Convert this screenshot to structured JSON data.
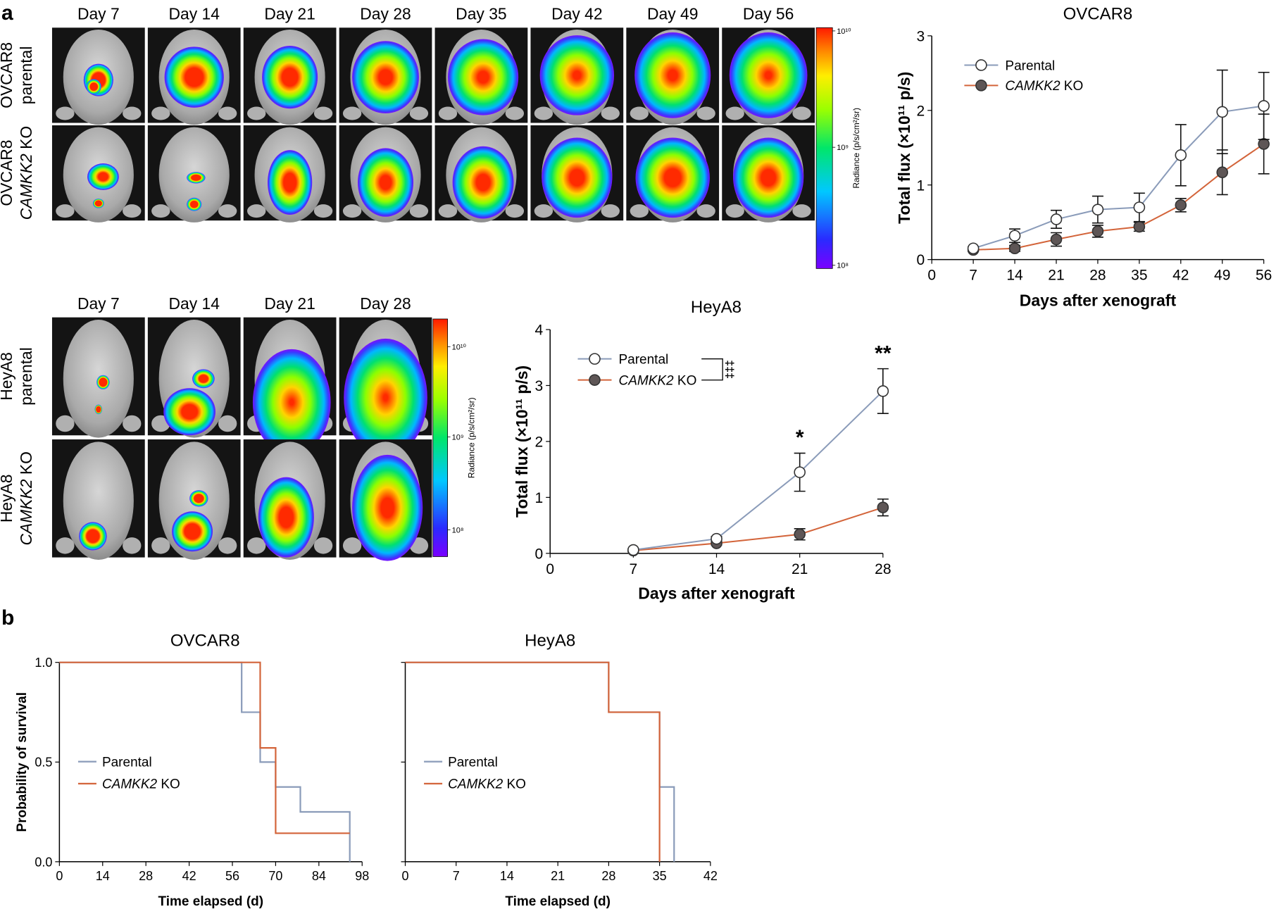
{
  "panel_labels": {
    "a": "a",
    "b": "b"
  },
  "imaging": {
    "ovcar8": {
      "day_headers": [
        "Day 7",
        "Day 14",
        "Day 21",
        "Day 28",
        "Day 35",
        "Day 42",
        "Day 49",
        "Day 56"
      ],
      "rows": [
        {
          "line1": "OVCAR8",
          "line2": "parental",
          "line2_italic_part": "",
          "line2_rest": ""
        },
        {
          "line1": "OVCAR8",
          "line2": "",
          "line2_italic_part": "CAMKK2",
          "line2_rest": " KO"
        }
      ],
      "colorbar": {
        "label": "Radiance (p/s/cm²/sr)",
        "ticks": [
          "10¹⁰",
          "10⁹",
          "10⁸"
        ]
      }
    },
    "heya8": {
      "day_headers": [
        "Day 7",
        "Day 14",
        "Day 21",
        "Day 28"
      ],
      "rows": [
        {
          "line1": "HeyA8",
          "line2": "parental",
          "line2_italic_part": "",
          "line2_rest": ""
        },
        {
          "line1": "HeyA8",
          "line2": "",
          "line2_italic_part": "CAMKK2",
          "line2_rest": " KO"
        }
      ],
      "colorbar": {
        "label": "Radiance (p/s/cm²/sr)",
        "ticks": [
          "10¹⁰",
          "10⁹",
          "10⁸"
        ]
      }
    }
  },
  "colors": {
    "parental": "#8a9bb9",
    "ko": "#d3643a",
    "ko_marker": "#5e5656",
    "axis": "#000000"
  },
  "chart_data": [
    {
      "id": "ovcar8_flux",
      "type": "line",
      "title": "OVCAR8",
      "xlabel": "Days after xenograft",
      "ylabel": "Total flux (×10¹¹ p/s)",
      "xlim": [
        0,
        56
      ],
      "ylim": [
        0,
        3
      ],
      "xticks": [
        0,
        7,
        14,
        21,
        28,
        35,
        42,
        49,
        56
      ],
      "yticks": [
        0,
        1,
        2,
        3
      ],
      "x": [
        7,
        14,
        21,
        28,
        35,
        42,
        49,
        56
      ],
      "series": [
        {
          "name": "Parental",
          "name_italic": "",
          "name_rest": "",
          "values": [
            0.15,
            0.32,
            0.54,
            0.67,
            0.7,
            1.4,
            1.98,
            2.06
          ],
          "errors": [
            0.02,
            0.09,
            0.12,
            0.18,
            0.19,
            0.41,
            0.56,
            0.45
          ]
        },
        {
          "name": "",
          "name_italic": "CAMKK2",
          "name_rest": " KO",
          "values": [
            0.13,
            0.15,
            0.27,
            0.38,
            0.44,
            0.73,
            1.17,
            1.55
          ],
          "errors": [
            0.02,
            0.04,
            0.09,
            0.08,
            0.06,
            0.09,
            0.3,
            0.4
          ]
        }
      ],
      "legend_position": "top-left"
    },
    {
      "id": "heya8_flux",
      "type": "line",
      "title": "HeyA8",
      "xlabel": "Days after xenograft",
      "ylabel": "Total flux (×10¹¹ p/s)",
      "xlim": [
        0,
        28
      ],
      "ylim": [
        0,
        4
      ],
      "xticks": [
        0,
        7,
        14,
        21,
        28
      ],
      "yticks": [
        0,
        1,
        2,
        3,
        4
      ],
      "x": [
        7,
        14,
        21,
        28
      ],
      "series": [
        {
          "name": "Parental",
          "name_italic": "",
          "name_rest": "",
          "values": [
            0.06,
            0.26,
            1.45,
            2.9
          ],
          "errors": [
            0.02,
            0.04,
            0.34,
            0.4
          ]
        },
        {
          "name": "",
          "name_italic": "CAMKK2",
          "name_rest": " KO",
          "values": [
            0.05,
            0.18,
            0.34,
            0.82
          ],
          "errors": [
            0.02,
            0.03,
            0.1,
            0.15
          ]
        }
      ],
      "annotations": [
        {
          "text": "*",
          "x": 21,
          "y": 1.95
        },
        {
          "text": "**",
          "x": 28,
          "y": 3.45
        }
      ],
      "legend_position": "top-left",
      "legend_mark": "‡‡‡"
    },
    {
      "id": "ovcar8_survival",
      "type": "line",
      "subtype": "kaplan-meier",
      "title": "OVCAR8",
      "xlabel": "Time elapsed (d)",
      "ylabel": "Probability of survival",
      "xlim": [
        0,
        98
      ],
      "ylim": [
        0,
        1
      ],
      "xticks": [
        0,
        14,
        28,
        42,
        56,
        70,
        84,
        98
      ],
      "ytick_labels": [
        "0.0",
        "0.5",
        "1.0"
      ],
      "yticks": [
        0,
        0.5,
        1
      ],
      "series": [
        {
          "name": "Parental",
          "name_italic": "",
          "name_rest": "",
          "steps": [
            [
              0,
              1.0
            ],
            [
              59,
              0.75
            ],
            [
              65,
              0.5
            ],
            [
              70,
              0.375
            ],
            [
              78,
              0.25
            ],
            [
              94,
              0.0
            ]
          ]
        },
        {
          "name": "",
          "name_italic": "CAMKK2",
          "name_rest": " KO",
          "steps": [
            [
              0,
              1.0
            ],
            [
              65,
              0.571
            ],
            [
              70,
              0.143
            ],
            [
              94,
              0.143
            ]
          ]
        }
      ],
      "legend_position": "center-left"
    },
    {
      "id": "heya8_survival",
      "type": "line",
      "subtype": "kaplan-meier",
      "title": "HeyA8",
      "xlabel": "Time elapsed (d)",
      "ylabel": "",
      "xlim": [
        0,
        42
      ],
      "ylim": [
        0,
        1
      ],
      "xticks": [
        0,
        7,
        14,
        21,
        28,
        35,
        42
      ],
      "ytick_labels": [],
      "yticks": [
        0,
        0.5,
        1
      ],
      "series": [
        {
          "name": "Parental",
          "name_italic": "",
          "name_rest": "",
          "steps": [
            [
              0,
              1.0
            ],
            [
              28,
              0.75
            ],
            [
              35,
              0.375
            ],
            [
              37,
              0.0
            ]
          ]
        },
        {
          "name": "",
          "name_italic": "CAMKK2",
          "name_rest": " KO",
          "steps": [
            [
              0,
              1.0
            ],
            [
              28,
              0.75
            ],
            [
              35,
              0.0
            ]
          ]
        }
      ],
      "legend_position": "center-left"
    }
  ]
}
